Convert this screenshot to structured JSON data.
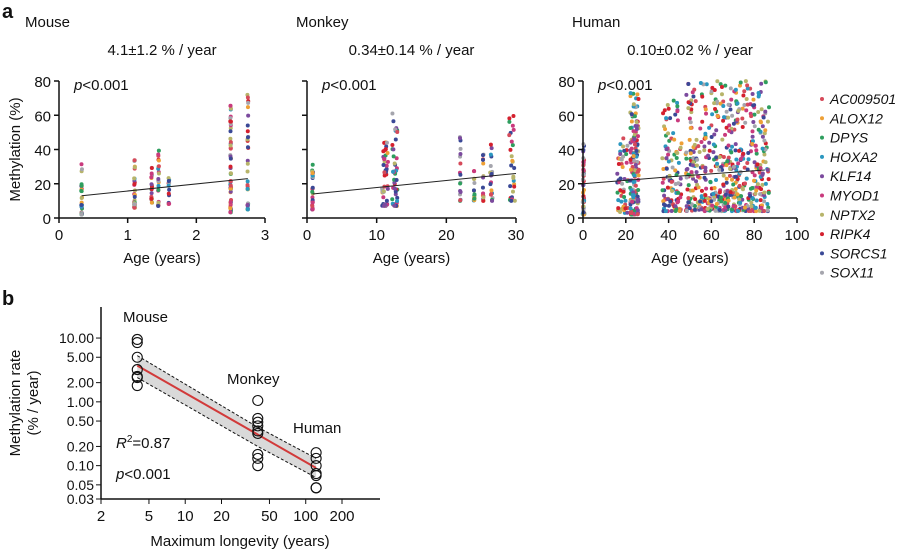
{
  "panel_labels": [
    "a",
    "b"
  ],
  "legend": [
    {
      "name": "AC009501",
      "color": "#d64a5a"
    },
    {
      "name": "ALOX12",
      "color": "#eea036"
    },
    {
      "name": "DPYS",
      "color": "#2e9e5e"
    },
    {
      "name": "HOXA2",
      "color": "#2b97c0"
    },
    {
      "name": "KLF14",
      "color": "#7b4a9e"
    },
    {
      "name": "MYOD1",
      "color": "#c93a7d"
    },
    {
      "name": "NPTX2",
      "color": "#b7b46a"
    },
    {
      "name": "RIPK4",
      "color": "#d4202e"
    },
    {
      "name": "SORCS1",
      "color": "#3a4896"
    },
    {
      "name": "SOX11",
      "color": "#a5a5ad"
    }
  ],
  "chart_data": [
    {
      "type": "scatter",
      "title": "Mouse",
      "subtitle": "4.1±1.2 % / year",
      "annotation": "p<0.001",
      "xlabel": "Age (years)",
      "ylabel": "Methylation (%)",
      "xlim": [
        0,
        3
      ],
      "ylim": [
        0,
        80
      ],
      "xticks": [
        "0",
        "1",
        "2",
        "3"
      ],
      "yticks": [
        "0",
        "20",
        "40",
        "60",
        "80"
      ],
      "groups": [
        {
          "age": [
            0.33,
            0.33
          ],
          "range": [
            2,
            35
          ],
          "n": 30
        },
        {
          "age": [
            1.1,
            1.1
          ],
          "range": [
            6,
            34
          ],
          "n": 35
        },
        {
          "age": [
            1.35,
            1.35
          ],
          "range": [
            8,
            31
          ],
          "n": 20
        },
        {
          "age": [
            1.45,
            1.45
          ],
          "range": [
            7,
            42
          ],
          "n": 25
        },
        {
          "age": [
            1.6,
            1.6
          ],
          "range": [
            7,
            29
          ],
          "n": 12
        },
        {
          "age": [
            2.5,
            2.5
          ],
          "range": [
            3,
            66
          ],
          "n": 55
        },
        {
          "age": [
            2.75,
            2.75
          ],
          "range": [
            5,
            78
          ],
          "n": 35
        }
      ],
      "fit": {
        "x": [
          0.33,
          2.75
        ],
        "y": [
          13,
          23
        ]
      }
    },
    {
      "type": "scatter",
      "title": "Monkey",
      "subtitle": "0.34±0.14 % / year",
      "annotation": "p<0.001",
      "xlabel": "Age (years)",
      "ylabel": "",
      "xlim": [
        0,
        30
      ],
      "ylim": [
        0,
        80
      ],
      "xticks": [
        "0",
        "10",
        "20",
        "30"
      ],
      "yticks": [
        "",
        "",
        "",
        "",
        ""
      ],
      "groups": [
        {
          "age": [
            0.8,
            0.8
          ],
          "range": [
            5,
            32
          ],
          "n": 30
        },
        {
          "age": [
            10.8,
            11.6
          ],
          "range": [
            7,
            48
          ],
          "n": 45
        },
        {
          "age": [
            12.2,
            13
          ],
          "range": [
            7,
            61
          ],
          "n": 45
        },
        {
          "age": [
            22,
            22
          ],
          "range": [
            10,
            49
          ],
          "n": 18
        },
        {
          "age": [
            24,
            24
          ],
          "range": [
            10,
            43
          ],
          "n": 16
        },
        {
          "age": [
            25.3,
            25.3
          ],
          "range": [
            10,
            39
          ],
          "n": 16
        },
        {
          "age": [
            26.3,
            26.6
          ],
          "range": [
            10,
            48
          ],
          "n": 20
        },
        {
          "age": [
            29,
            29.8
          ],
          "range": [
            10,
            60
          ],
          "n": 28
        }
      ],
      "fit": {
        "x": [
          0.8,
          30
        ],
        "y": [
          14,
          26
        ]
      }
    },
    {
      "type": "scatter",
      "title": "Human",
      "subtitle": "0.10±0.02 % / year",
      "annotation": "p<0.001",
      "xlabel": "Age (years)",
      "ylabel": "",
      "xlim": [
        0,
        100
      ],
      "ylim": [
        0,
        80
      ],
      "xticks": [
        "0",
        "20",
        "40",
        "60",
        "80",
        "100"
      ],
      "yticks": [
        "0",
        "20",
        "40",
        "60",
        "80"
      ],
      "groups": [
        {
          "age": [
            0,
            0.5
          ],
          "range": [
            2,
            44
          ],
          "n": 50
        },
        {
          "age": [
            16,
            21
          ],
          "range": [
            3,
            49
          ],
          "n": 50
        },
        {
          "age": [
            22,
            26
          ],
          "range": [
            2,
            73
          ],
          "n": 160
        },
        {
          "age": [
            37,
            46
          ],
          "range": [
            4,
            71
          ],
          "n": 110
        },
        {
          "age": [
            48,
            87
          ],
          "range": [
            4,
            80
          ],
          "n": 560
        }
      ],
      "fit": {
        "x": [
          0,
          40,
          85
        ],
        "y": [
          20,
          24,
          28
        ]
      }
    },
    {
      "type": "scatter",
      "xscale": "log",
      "yscale": "log",
      "xlabel": "Maximum longevity (years)",
      "ylabel": "Methylation rate (% / year)",
      "xlim": [
        2,
        400
      ],
      "ylim": [
        0.03,
        30
      ],
      "xticks": [
        2,
        5,
        10,
        20,
        50,
        100,
        200
      ],
      "xtick_labels": [
        "2",
        "5",
        "10",
        "20",
        "50",
        "100",
        "200"
      ],
      "yticks": [
        0.03,
        0.05,
        0.1,
        0.2,
        0.5,
        1,
        2,
        5,
        10
      ],
      "ytick_labels": [
        "0.03",
        "0.05",
        "0.10",
        "0.20",
        "0.50",
        "1.00",
        "2.00",
        "5.00",
        "10.00"
      ],
      "annotations": {
        "r2": "=0.87",
        "r2_label": "R",
        "r2_sup": "2",
        "p": "p<0.001"
      },
      "species": [
        {
          "name": "Mouse",
          "longevity": 4,
          "rates": [
            9.5,
            8.5,
            5,
            3.2,
            2.5,
            2.4,
            1.8
          ]
        },
        {
          "name": "Monkey",
          "longevity": 40,
          "rates": [
            1.05,
            0.55,
            0.48,
            0.42,
            0.35,
            0.32,
            0.15,
            0.13,
            0.1
          ]
        },
        {
          "name": "Human",
          "longevity": 122,
          "rates": [
            0.16,
            0.13,
            0.1,
            0.075,
            0.07,
            0.045,
            0.045
          ]
        }
      ],
      "fit": {
        "x": [
          4,
          122
        ],
        "y": [
          3.7,
          0.092
        ]
      },
      "fit_color": "#d23a3a",
      "ci_color": "#cfcfcf"
    }
  ]
}
